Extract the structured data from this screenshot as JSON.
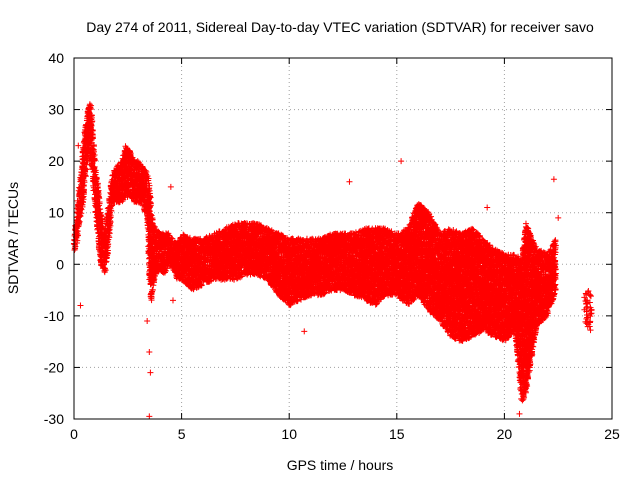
{
  "chart_data": {
    "type": "scatter",
    "title": "Day 274 of 2011, Sidereal Day-to-day VTEC variation (SDTVAR) for receiver savo",
    "xlabel": "GPS time / hours",
    "ylabel": "SDTVAR / TECUs",
    "xlim": [
      0,
      25
    ],
    "ylim": [
      -30,
      40
    ],
    "xticks": [
      0,
      5,
      10,
      15,
      20,
      25
    ],
    "yticks": [
      -30,
      -20,
      -10,
      0,
      10,
      20,
      30,
      40
    ],
    "grid": true,
    "marker": "+",
    "color": "#ff0000",
    "bands": [
      [
        0.0,
        2,
        5
      ],
      [
        0.1,
        3,
        9
      ],
      [
        0.2,
        6,
        14
      ],
      [
        0.3,
        9,
        17
      ],
      [
        0.4,
        11,
        22
      ],
      [
        0.5,
        15,
        26
      ],
      [
        0.6,
        19,
        29
      ],
      [
        0.7,
        22,
        31
      ],
      [
        0.8,
        20,
        32
      ],
      [
        0.9,
        15,
        24
      ],
      [
        1.0,
        10,
        19
      ],
      [
        1.1,
        6,
        16
      ],
      [
        1.2,
        1,
        12
      ],
      [
        1.3,
        -1,
        9
      ],
      [
        1.4,
        -2,
        6
      ],
      [
        1.5,
        -1,
        8
      ],
      [
        1.6,
        3,
        12
      ],
      [
        1.7,
        8,
        15
      ],
      [
        1.8,
        12,
        18
      ],
      [
        2.0,
        12,
        19
      ],
      [
        2.2,
        12,
        20
      ],
      [
        2.4,
        13,
        23
      ],
      [
        2.6,
        13,
        22
      ],
      [
        2.8,
        12,
        20
      ],
      [
        3.0,
        12,
        20
      ],
      [
        3.2,
        11,
        19
      ],
      [
        3.4,
        9,
        18
      ],
      [
        3.5,
        -3,
        16
      ],
      [
        3.6,
        -8,
        10
      ],
      [
        3.7,
        -4,
        8
      ],
      [
        3.8,
        -2,
        7
      ],
      [
        4.0,
        -1,
        6
      ],
      [
        4.2,
        -2,
        6
      ],
      [
        4.4,
        0,
        6
      ],
      [
        4.6,
        -1,
        5
      ],
      [
        4.8,
        -3,
        4
      ],
      [
        5.0,
        -3,
        6
      ],
      [
        5.5,
        -5,
        5
      ],
      [
        6.0,
        -4,
        5
      ],
      [
        6.5,
        -3,
        6
      ],
      [
        7.0,
        -3,
        7
      ],
      [
        7.5,
        -3,
        8
      ],
      [
        8.0,
        -2,
        8
      ],
      [
        8.5,
        -2,
        8
      ],
      [
        9.0,
        -3,
        7
      ],
      [
        9.5,
        -6,
        6
      ],
      [
        10.0,
        -8,
        5
      ],
      [
        10.5,
        -7,
        5
      ],
      [
        11.0,
        -6,
        5
      ],
      [
        11.5,
        -6,
        5
      ],
      [
        12.0,
        -5,
        6
      ],
      [
        12.5,
        -5,
        6
      ],
      [
        13.0,
        -6,
        6
      ],
      [
        13.5,
        -7,
        7
      ],
      [
        14.0,
        -8,
        7
      ],
      [
        14.5,
        -6,
        7
      ],
      [
        15.0,
        -6,
        6
      ],
      [
        15.5,
        -8,
        7
      ],
      [
        16.0,
        -6,
        12
      ],
      [
        16.5,
        -9,
        10
      ],
      [
        17.0,
        -11,
        6
      ],
      [
        17.5,
        -14,
        7
      ],
      [
        18.0,
        -15,
        6
      ],
      [
        18.5,
        -14,
        7
      ],
      [
        19.0,
        -13,
        5
      ],
      [
        19.5,
        -14,
        3
      ],
      [
        20.0,
        -15,
        2
      ],
      [
        20.5,
        -13,
        2
      ],
      [
        20.8,
        -27,
        1
      ],
      [
        21.0,
        -25,
        8
      ],
      [
        21.5,
        -12,
        3
      ],
      [
        22.0,
        -10,
        2
      ],
      [
        22.4,
        -5,
        5
      ],
      [
        23.9,
        -13,
        -5
      ]
    ],
    "outliers": [
      [
        0.3,
        -8
      ],
      [
        0.2,
        23
      ],
      [
        3.5,
        -17
      ],
      [
        3.55,
        -21
      ],
      [
        3.5,
        -29.5
      ],
      [
        3.4,
        -11
      ],
      [
        4.5,
        15
      ],
      [
        12.8,
        16
      ],
      [
        15.2,
        20
      ],
      [
        19.2,
        11
      ],
      [
        22.3,
        16.5
      ],
      [
        22.5,
        9
      ],
      [
        4.6,
        -7
      ],
      [
        10.7,
        -13
      ],
      [
        20.7,
        -29
      ]
    ]
  }
}
